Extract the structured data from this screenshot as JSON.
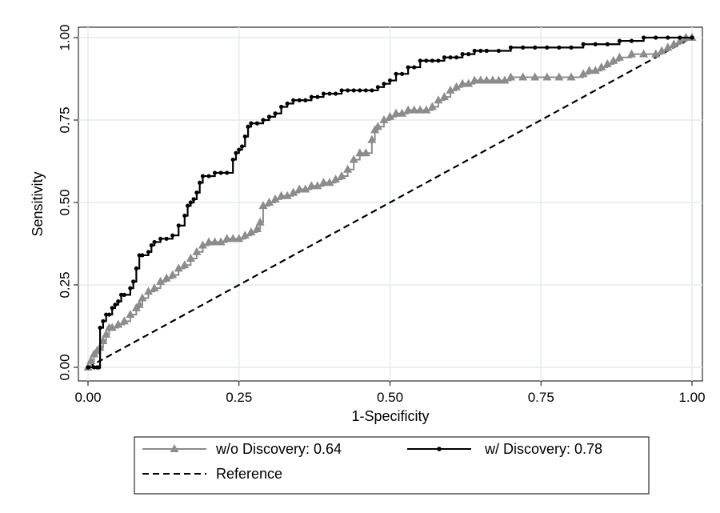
{
  "chart_data": {
    "type": "line",
    "title": "",
    "xlabel": "1-Specificity",
    "ylabel": "Sensitivity",
    "xlim": [
      0,
      1
    ],
    "ylim": [
      0,
      1
    ],
    "x_ticks": [
      "0.00",
      "0.25",
      "0.50",
      "0.75",
      "1.00"
    ],
    "y_ticks": [
      "0.00",
      "0.25",
      "0.50",
      "0.75",
      "1.00"
    ],
    "grid": true,
    "legend_placement": "bottom",
    "series": [
      {
        "name": "w/o Discovery: 0.64",
        "color": "#8c8c8c",
        "marker": "triangle",
        "x": [
          0.0,
          0.005,
          0.01,
          0.015,
          0.02,
          0.025,
          0.03,
          0.035,
          0.04,
          0.05,
          0.06,
          0.07,
          0.08,
          0.085,
          0.09,
          0.1,
          0.11,
          0.12,
          0.13,
          0.14,
          0.15,
          0.16,
          0.17,
          0.18,
          0.19,
          0.2,
          0.21,
          0.22,
          0.23,
          0.24,
          0.25,
          0.26,
          0.27,
          0.28,
          0.285,
          0.29,
          0.3,
          0.31,
          0.32,
          0.33,
          0.34,
          0.35,
          0.36,
          0.37,
          0.38,
          0.39,
          0.4,
          0.41,
          0.42,
          0.43,
          0.44,
          0.45,
          0.46,
          0.47,
          0.475,
          0.48,
          0.49,
          0.5,
          0.51,
          0.52,
          0.53,
          0.54,
          0.55,
          0.56,
          0.57,
          0.58,
          0.59,
          0.6,
          0.61,
          0.62,
          0.63,
          0.64,
          0.65,
          0.66,
          0.67,
          0.68,
          0.69,
          0.7,
          0.72,
          0.74,
          0.76,
          0.78,
          0.8,
          0.82,
          0.83,
          0.84,
          0.85,
          0.86,
          0.87,
          0.88,
          0.9,
          0.92,
          0.94,
          0.95,
          0.96,
          0.97,
          0.98,
          0.99,
          1.0
        ],
        "y": [
          0.0,
          0.02,
          0.04,
          0.05,
          0.06,
          0.08,
          0.1,
          0.12,
          0.12,
          0.13,
          0.14,
          0.16,
          0.18,
          0.19,
          0.21,
          0.23,
          0.24,
          0.26,
          0.27,
          0.28,
          0.3,
          0.31,
          0.33,
          0.35,
          0.37,
          0.38,
          0.38,
          0.38,
          0.39,
          0.39,
          0.39,
          0.4,
          0.41,
          0.42,
          0.44,
          0.49,
          0.5,
          0.51,
          0.52,
          0.52,
          0.53,
          0.54,
          0.54,
          0.55,
          0.55,
          0.56,
          0.56,
          0.57,
          0.58,
          0.6,
          0.63,
          0.65,
          0.65,
          0.69,
          0.72,
          0.73,
          0.75,
          0.76,
          0.77,
          0.77,
          0.78,
          0.78,
          0.78,
          0.78,
          0.79,
          0.81,
          0.82,
          0.84,
          0.85,
          0.86,
          0.86,
          0.87,
          0.87,
          0.87,
          0.87,
          0.87,
          0.87,
          0.88,
          0.88,
          0.88,
          0.88,
          0.88,
          0.88,
          0.89,
          0.9,
          0.9,
          0.91,
          0.92,
          0.93,
          0.94,
          0.95,
          0.95,
          0.95,
          0.96,
          0.97,
          0.98,
          0.99,
          1.0,
          1.0
        ]
      },
      {
        "name": "w/ Discovery: 0.78",
        "color": "#000000",
        "marker": "dot",
        "x": [
          0.0,
          0.01,
          0.015,
          0.018,
          0.02,
          0.025,
          0.03,
          0.035,
          0.04,
          0.045,
          0.05,
          0.055,
          0.06,
          0.07,
          0.075,
          0.08,
          0.085,
          0.09,
          0.1,
          0.105,
          0.11,
          0.12,
          0.13,
          0.14,
          0.15,
          0.16,
          0.165,
          0.17,
          0.175,
          0.18,
          0.185,
          0.19,
          0.2,
          0.21,
          0.22,
          0.23,
          0.24,
          0.245,
          0.25,
          0.255,
          0.26,
          0.265,
          0.27,
          0.28,
          0.29,
          0.3,
          0.31,
          0.32,
          0.33,
          0.34,
          0.35,
          0.36,
          0.37,
          0.38,
          0.39,
          0.4,
          0.41,
          0.42,
          0.43,
          0.44,
          0.45,
          0.46,
          0.47,
          0.48,
          0.49,
          0.5,
          0.51,
          0.52,
          0.53,
          0.54,
          0.55,
          0.56,
          0.57,
          0.58,
          0.59,
          0.6,
          0.61,
          0.62,
          0.63,
          0.64,
          0.65,
          0.66,
          0.68,
          0.7,
          0.72,
          0.74,
          0.76,
          0.78,
          0.8,
          0.82,
          0.84,
          0.86,
          0.88,
          0.9,
          0.92,
          0.94,
          0.96,
          0.98,
          1.0
        ],
        "y": [
          0.0,
          0.0,
          0.0,
          0.0,
          0.12,
          0.14,
          0.16,
          0.16,
          0.18,
          0.19,
          0.2,
          0.22,
          0.22,
          0.24,
          0.26,
          0.3,
          0.34,
          0.34,
          0.35,
          0.37,
          0.38,
          0.39,
          0.39,
          0.4,
          0.43,
          0.46,
          0.49,
          0.5,
          0.51,
          0.53,
          0.56,
          0.58,
          0.58,
          0.59,
          0.59,
          0.59,
          0.63,
          0.65,
          0.66,
          0.67,
          0.7,
          0.73,
          0.74,
          0.74,
          0.75,
          0.76,
          0.77,
          0.79,
          0.8,
          0.81,
          0.81,
          0.81,
          0.82,
          0.82,
          0.83,
          0.83,
          0.83,
          0.84,
          0.84,
          0.84,
          0.84,
          0.84,
          0.84,
          0.85,
          0.86,
          0.87,
          0.89,
          0.89,
          0.91,
          0.91,
          0.93,
          0.93,
          0.93,
          0.93,
          0.94,
          0.94,
          0.94,
          0.95,
          0.95,
          0.96,
          0.96,
          0.96,
          0.96,
          0.97,
          0.97,
          0.97,
          0.97,
          0.97,
          0.97,
          0.98,
          0.98,
          0.98,
          0.99,
          0.99,
          1.0,
          1.0,
          1.0,
          1.0,
          1.0
        ]
      },
      {
        "name": "Reference",
        "color": "#000000",
        "marker": "none",
        "style": "dashed",
        "x": [
          0,
          1
        ],
        "y": [
          0,
          1
        ]
      }
    ]
  }
}
